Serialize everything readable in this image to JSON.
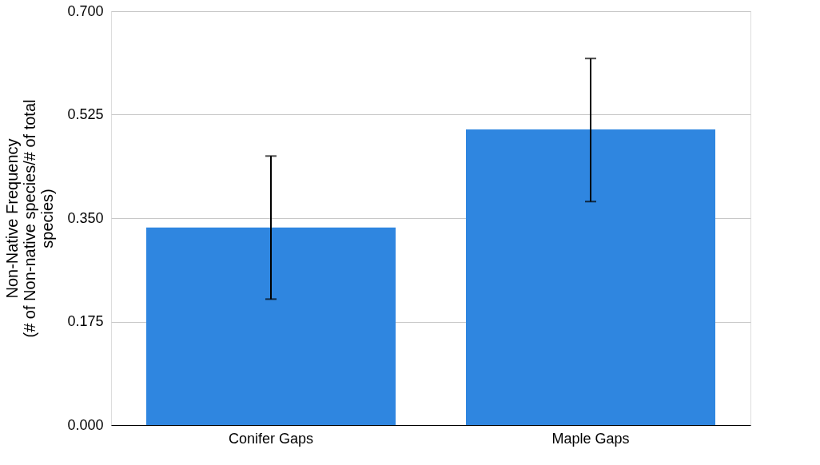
{
  "chart_data": {
    "type": "bar",
    "ylabel": "Non-Native Frequency\n(# of Non-native species/# of total\nspecies)",
    "categories": [
      "Conifer Gaps",
      "Maple Gaps"
    ],
    "values": [
      0.334,
      0.5
    ],
    "errors": [
      [
        0.213,
        0.455
      ],
      [
        0.378,
        0.62
      ]
    ],
    "color": "#2f86e0",
    "ylim": [
      0,
      0.7
    ],
    "yticks": [
      {
        "value": 0,
        "label": "0.000"
      },
      {
        "value": 0.175,
        "label": "0.175"
      },
      {
        "value": 0.35,
        "label": "0.350"
      },
      {
        "value": 0.525,
        "label": "0.525"
      },
      {
        "value": 0.7,
        "label": "0.700"
      }
    ],
    "grid": "y"
  }
}
